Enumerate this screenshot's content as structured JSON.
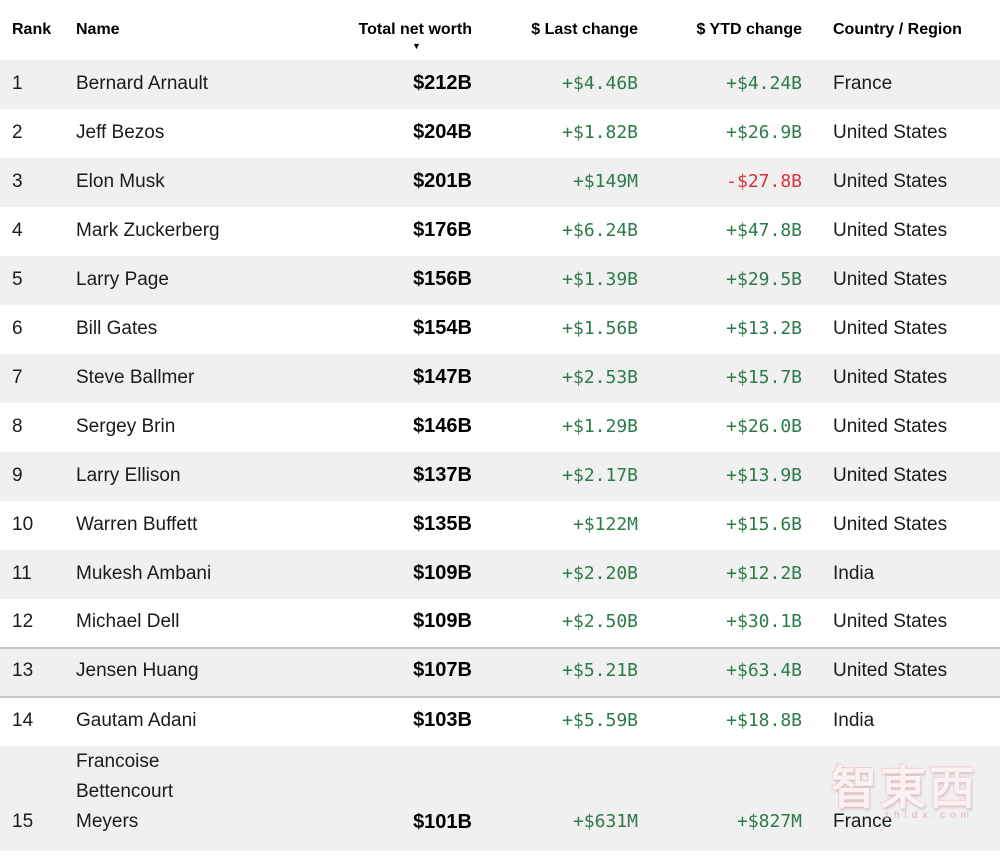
{
  "table": {
    "columns": [
      {
        "label": "Rank"
      },
      {
        "label": "Name"
      },
      {
        "label": "Total net worth",
        "sort": "desc"
      },
      {
        "label": "$ Last change"
      },
      {
        "label": "$ YTD change"
      },
      {
        "label": "Country / Region"
      }
    ],
    "sort_arrow": "▼",
    "rows": [
      {
        "rank": "1",
        "name": "Bernard Arnault",
        "net_worth": "$212B",
        "last_change": "+$4.46B",
        "ytd_change": "+$4.24B",
        "country": "France"
      },
      {
        "rank": "2",
        "name": "Jeff Bezos",
        "net_worth": "$204B",
        "last_change": "+$1.82B",
        "ytd_change": "+$26.9B",
        "country": "United States"
      },
      {
        "rank": "3",
        "name": "Elon Musk",
        "net_worth": "$201B",
        "last_change": "+$149M",
        "ytd_change": "-$27.8B",
        "country": "United States"
      },
      {
        "rank": "4",
        "name": "Mark Zuckerberg",
        "net_worth": "$176B",
        "last_change": "+$6.24B",
        "ytd_change": "+$47.8B",
        "country": "United States"
      },
      {
        "rank": "5",
        "name": "Larry Page",
        "net_worth": "$156B",
        "last_change": "+$1.39B",
        "ytd_change": "+$29.5B",
        "country": "United States"
      },
      {
        "rank": "6",
        "name": "Bill Gates",
        "net_worth": "$154B",
        "last_change": "+$1.56B",
        "ytd_change": "+$13.2B",
        "country": "United States"
      },
      {
        "rank": "7",
        "name": "Steve Ballmer",
        "net_worth": "$147B",
        "last_change": "+$2.53B",
        "ytd_change": "+$15.7B",
        "country": "United States"
      },
      {
        "rank": "8",
        "name": "Sergey Brin",
        "net_worth": "$146B",
        "last_change": "+$1.29B",
        "ytd_change": "+$26.0B",
        "country": "United States"
      },
      {
        "rank": "9",
        "name": "Larry Ellison",
        "net_worth": "$137B",
        "last_change": "+$2.17B",
        "ytd_change": "+$13.9B",
        "country": "United States"
      },
      {
        "rank": "10",
        "name": "Warren Buffett",
        "net_worth": "$135B",
        "last_change": "+$122M",
        "ytd_change": "+$15.6B",
        "country": "United States"
      },
      {
        "rank": "11",
        "name": "Mukesh Ambani",
        "net_worth": "$109B",
        "last_change": "+$2.20B",
        "ytd_change": "+$12.2B",
        "country": "India"
      },
      {
        "rank": "12",
        "name": "Michael Dell",
        "net_worth": "$109B",
        "last_change": "+$2.50B",
        "ytd_change": "+$30.1B",
        "country": "United States"
      },
      {
        "rank": "13",
        "name": "Jensen Huang",
        "net_worth": "$107B",
        "last_change": "+$5.21B",
        "ytd_change": "+$63.4B",
        "country": "United States",
        "highlighted": true
      },
      {
        "rank": "14",
        "name": "Gautam Adani",
        "net_worth": "$103B",
        "last_change": "+$5.59B",
        "ytd_change": "+$18.8B",
        "country": "India"
      },
      {
        "rank": "15",
        "name": "Francoise Bettencourt Meyers",
        "net_worth": "$101B",
        "last_change": "+$631M",
        "ytd_change": "+$827M",
        "country": "France",
        "tall": true,
        "wrap": true
      }
    ]
  },
  "colors": {
    "positive": "#2d7a4a",
    "negative": "#d9323c",
    "zebra_row": "#f0f0f0",
    "highlight_border": "#c6c6c6"
  },
  "watermark": {
    "logo_text": "智東西",
    "sub_text": "zhidx.com"
  }
}
